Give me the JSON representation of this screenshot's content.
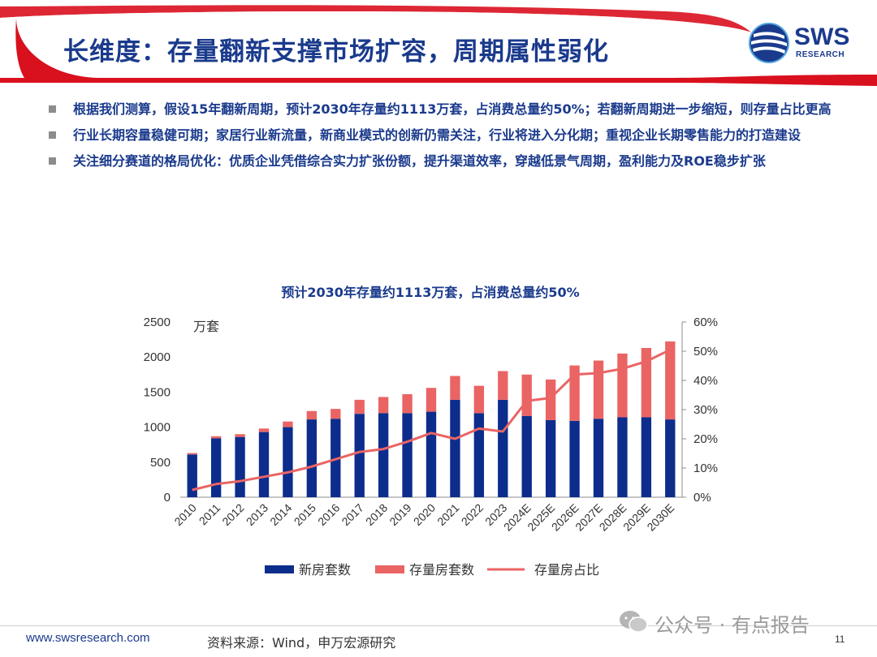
{
  "header": {
    "title": "长维度：存量翻新支撑市场扩容，周期属性弱化",
    "logo_text": "SWS",
    "logo_sub": "RESEARCH"
  },
  "bullets": [
    "根据我们测算，假设15年翻新周期，预计2030年存量约1113万套，占消费总量约50%；若翻新周期进一步缩短，则存量占比更高",
    "行业长期容量稳健可期；家居行业新流量，新商业模式的创新仍需关注，行业将进入分化期；重视企业长期零售能力的打造建设",
    "关注细分赛道的格局优化：优质企业凭借综合实力扩张份额，提升渠道效率，穿越低景气周期，盈利能力及ROE稳步扩张"
  ],
  "chart_data": {
    "type": "bar",
    "title": "预计2030年存量约1113万套，占消费总量约50%",
    "y_unit_label": "万套",
    "categories": [
      "2010",
      "2011",
      "2012",
      "2013",
      "2014",
      "2015",
      "2016",
      "2017",
      "2018",
      "2019",
      "2020",
      "2021",
      "2022",
      "2023",
      "2024E",
      "2025E",
      "2026E",
      "2027E",
      "2028E",
      "2029E",
      "2030E"
    ],
    "series": [
      {
        "name": "新房套数",
        "kind": "bar",
        "axis": "left",
        "color": "#0c2d8c",
        "values": [
          610,
          840,
          860,
          930,
          1000,
          1110,
          1120,
          1190,
          1200,
          1200,
          1220,
          1390,
          1200,
          1390,
          1160,
          1100,
          1090,
          1120,
          1140,
          1140,
          1110
        ]
      },
      {
        "name": "存量房套数",
        "kind": "bar",
        "axis": "left",
        "color": "#ea6464",
        "values": [
          20,
          30,
          40,
          50,
          80,
          120,
          140,
          200,
          230,
          270,
          340,
          340,
          390,
          410,
          590,
          580,
          790,
          830,
          910,
          990,
          1113
        ]
      },
      {
        "name": "存量房占比",
        "kind": "line",
        "axis": "right",
        "color": "#ea6464",
        "values": [
          2.5,
          4.5,
          5.5,
          7,
          8.5,
          10.5,
          13,
          15.5,
          16.5,
          19,
          22,
          20,
          23.5,
          22.5,
          33,
          34,
          42,
          42.5,
          44,
          46.5,
          50.5
        ]
      }
    ],
    "ylim": [
      0,
      2500
    ],
    "yticks": [
      "0",
      "500",
      "1000",
      "1500",
      "2000",
      "2500"
    ],
    "y2lim": [
      0,
      60
    ],
    "y2ticks": [
      "0%",
      "10%",
      "20%",
      "30%",
      "40%",
      "50%",
      "60%"
    ],
    "legend_position": "bottom",
    "grid": false
  },
  "footer": {
    "website": "www.swsresearch.com",
    "source": "资料来源：Wind，申万宏源研究",
    "page": "11",
    "watermark": "公众号 · 有点报告"
  },
  "colors": {
    "brand_blue": "#1a3a8c",
    "accent_red": "#d9101e",
    "bar_new": "#0c2d8c",
    "bar_stock": "#ea6464"
  }
}
